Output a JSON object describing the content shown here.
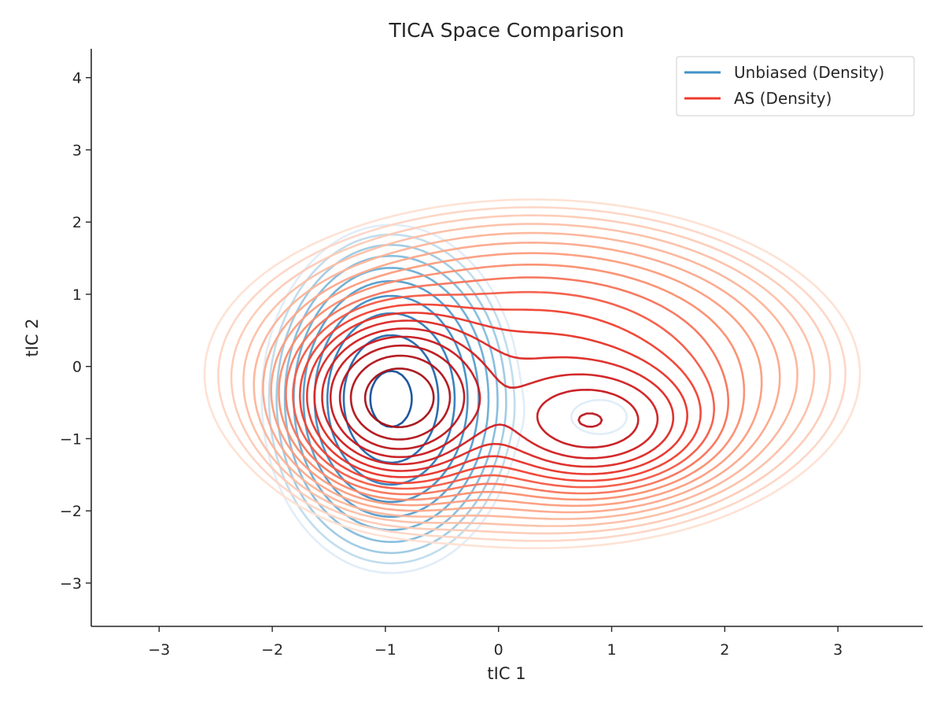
{
  "chart_data": {
    "type": "contour",
    "title": "TICA Space Comparison",
    "xlabel": "tIC 1",
    "ylabel": "tIC 2",
    "xlim": [
      -3.6,
      3.75
    ],
    "ylim": [
      -3.6,
      4.4
    ],
    "xticks": [
      -3,
      -2,
      -1,
      0,
      1,
      2,
      3
    ],
    "yticks": [
      -3,
      -2,
      -1,
      0,
      1,
      2,
      3,
      4
    ],
    "xtick_labels": [
      "−3",
      "−2",
      "−1",
      "0",
      "1",
      "2",
      "3"
    ],
    "ytick_labels": [
      "−3",
      "−2",
      "−1",
      "0",
      "1",
      "2",
      "3",
      "4"
    ],
    "grid": false,
    "legend_position": "top-right",
    "series": [
      {
        "name": "Unbiased (Density)",
        "color": "#4292c6",
        "colormap": "Blues",
        "levels": 10,
        "peak": [
          -0.95,
          -0.5
        ],
        "minor_peak": [
          0.9,
          -0.7
        ],
        "extent_x": [
          -1.75,
          0.1
        ],
        "extent_y": [
          -2.2,
          2.45
        ]
      },
      {
        "name": "AS (Density)",
        "color": "#ef3b2c",
        "colormap": "Reds",
        "levels": 18,
        "peak": [
          -0.9,
          -0.45
        ],
        "secondary_peak": [
          0.9,
          -0.8
        ],
        "extent_x": [
          -2.7,
          2.75
        ],
        "extent_y": [
          -2.55,
          2.85
        ]
      }
    ]
  }
}
